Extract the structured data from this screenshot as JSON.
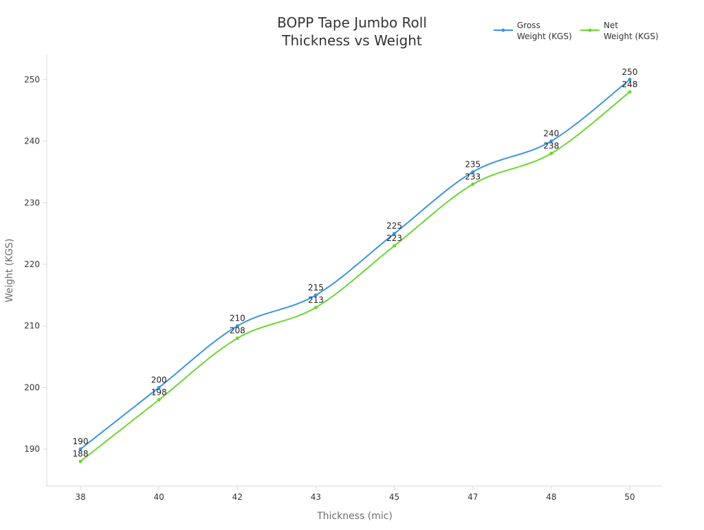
{
  "chart_data": {
    "type": "line",
    "title": [
      "BOPP Tape Jumbo Roll",
      "Thickness vs Weight"
    ],
    "xlabel": "Thickness (mic)",
    "ylabel": "Weight (KGS)",
    "categories": [
      "38",
      "40",
      "42",
      "43",
      "45",
      "47",
      "48",
      "50"
    ],
    "ylim": [
      184,
      254
    ],
    "yticks": [
      190,
      200,
      210,
      220,
      230,
      240,
      250
    ],
    "grid": false,
    "legend_position": "top-right",
    "series": [
      {
        "name": [
          "Gross",
          "Weight (KGS)"
        ],
        "color": "#3b93dd",
        "values": [
          190,
          200,
          210,
          215,
          225,
          235,
          240,
          250
        ]
      },
      {
        "name": [
          "Net",
          "Weight (KGS)"
        ],
        "color": "#6cd431",
        "values": [
          188,
          198,
          208,
          213,
          223,
          233,
          238,
          248
        ]
      }
    ]
  }
}
